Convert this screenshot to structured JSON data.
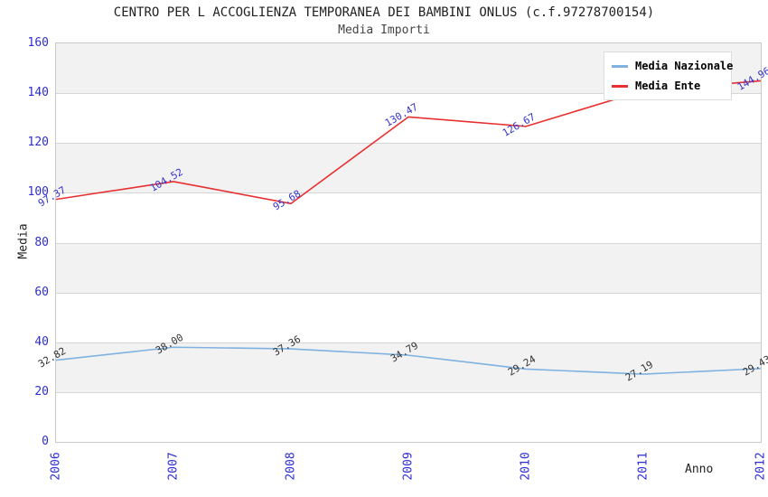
{
  "title": "CENTRO PER L ACCOGLIENZA TEMPORANEA DEI BAMBINI ONLUS (c.f.97278700154)",
  "subtitle": "Media Importi",
  "axes": {
    "y_title": "Media",
    "x_title": "Anno",
    "y_tick_labels": [
      "0",
      "20",
      "40",
      "60",
      "80",
      "100",
      "120",
      "140",
      "160"
    ],
    "x_tick_labels": [
      "2006",
      "2007",
      "2008",
      "2009",
      "2010",
      "2011",
      "2012"
    ],
    "tick_text_color": "#2d2dd2"
  },
  "legend": {
    "position": "top-right",
    "items": [
      {
        "label": "Media Nazionale",
        "color": "#7fb2e0"
      },
      {
        "label": "Media Ente",
        "color": "#e83030"
      }
    ]
  },
  "chart_data": {
    "type": "line",
    "x_categories": [
      "2006",
      "2007",
      "2008",
      "2009",
      "2010",
      "2011",
      "2012"
    ],
    "xlabel": "Anno",
    "ylabel": "Media",
    "ylim": [
      0,
      160
    ],
    "y_ticks": [
      0,
      20,
      40,
      60,
      80,
      100,
      120,
      140,
      160
    ],
    "grid": "horizontal alternating bands every 20 units",
    "legend_position": "top-right inside plot",
    "series": [
      {
        "name": "Media Nazionale",
        "color": "#7fb2e0",
        "label_color": "#333333",
        "values": [
          32.82,
          38.0,
          37.36,
          34.79,
          29.24,
          27.19,
          29.43
        ],
        "point_labels": [
          "32.82",
          "38.00",
          "37.36",
          "34.79",
          "29.24",
          "27.19",
          "29.43"
        ]
      },
      {
        "name": "Media Ente",
        "color": "#e83030",
        "label_color": "#3333cc",
        "values": [
          97.37,
          104.52,
          95.68,
          130.47,
          126.67,
          141.0,
          144.96
        ],
        "point_labels": [
          "97.37",
          "104.52",
          "95.68",
          "130.47",
          "126.67",
          "",
          "144.96"
        ]
      }
    ]
  },
  "colors": {
    "band_gray": "#f2f2f2",
    "band_white": "#ffffff",
    "grid_line": "#d6d6d6",
    "plot_border": "#c9c9c9",
    "title_text": "#222222"
  }
}
